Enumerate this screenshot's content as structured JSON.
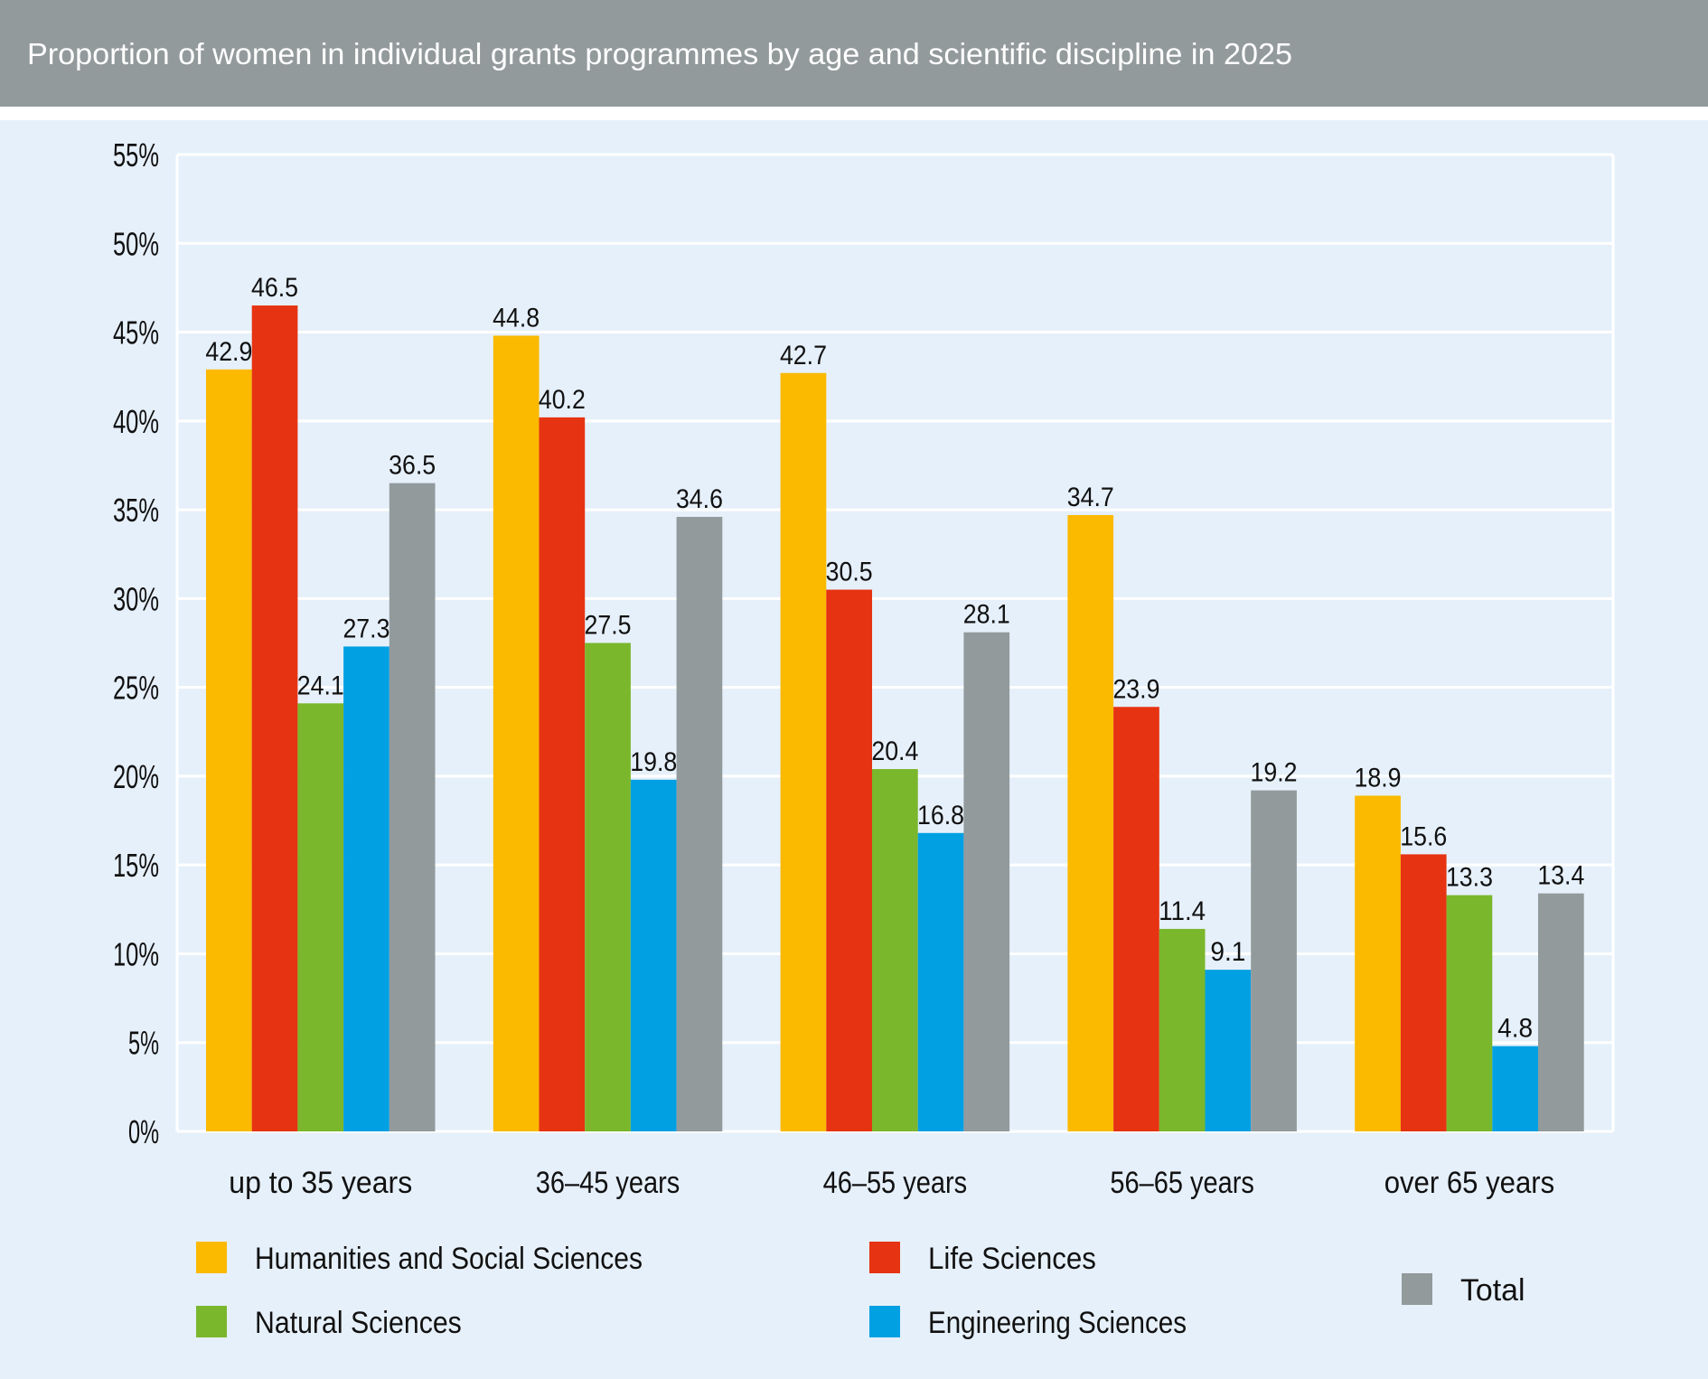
{
  "header": {
    "title": "Proportion of women in individual grants programmes by age and scientific discipline in 2025"
  },
  "colors": {
    "header_bg": "#939a9c",
    "plot_bg": "#e6f0fa",
    "grid": "#ffffff"
  },
  "chart_data": {
    "type": "bar",
    "title": "Proportion of women in individual grants programmes by age and scientific discipline in 2025",
    "categories": [
      "up to 35 years",
      "36–45 years",
      "46–55 years",
      "56–65 years",
      "over 65 years"
    ],
    "series": [
      {
        "name": "Humanities and Social Sciences",
        "color": "#fbb900",
        "values": [
          42.9,
          44.8,
          42.7,
          34.7,
          18.9
        ]
      },
      {
        "name": "Life Sciences",
        "color": "#e63312",
        "values": [
          46.5,
          40.2,
          30.5,
          23.9,
          15.6
        ]
      },
      {
        "name": "Natural Sciences",
        "color": "#7ab72c",
        "values": [
          24.1,
          27.5,
          20.4,
          11.4,
          13.3
        ]
      },
      {
        "name": "Engineering Sciences",
        "color": "#00a0e3",
        "values": [
          27.3,
          19.8,
          16.8,
          9.1,
          4.8
        ]
      },
      {
        "name": "Total",
        "color": "#929a9c",
        "values": [
          36.5,
          34.6,
          28.1,
          19.2,
          13.4
        ]
      }
    ],
    "yticks": [
      "0%",
      "5%",
      "10%",
      "15%",
      "20%",
      "25%",
      "30%",
      "35%",
      "40%",
      "45%",
      "50%",
      "55%"
    ],
    "ylim": [
      0,
      55
    ],
    "xlabel": "",
    "ylabel": "",
    "grid": true,
    "legend": "bottom"
  }
}
